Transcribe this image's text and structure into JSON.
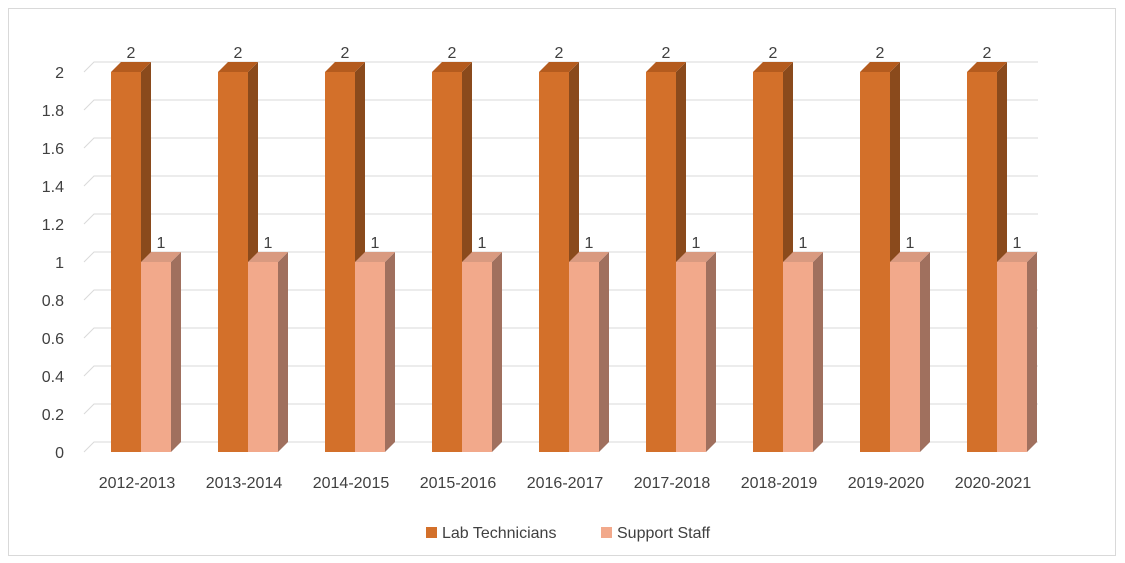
{
  "chart_data": {
    "type": "bar",
    "categories": [
      "2012-2013",
      "2013-2014",
      "2014-2015",
      "2015-2016",
      "2016-2017",
      "2017-2018",
      "2018-2019",
      "2019-2020",
      "2020-2021"
    ],
    "series": [
      {
        "name": "Lab Technicians",
        "values": [
          2,
          2,
          2,
          2,
          2,
          2,
          2,
          2,
          2
        ],
        "color": "#d3702a",
        "side_color": "#8a4a1c",
        "top_color": "#b45b1e"
      },
      {
        "name": "Support Staff",
        "values": [
          1,
          1,
          1,
          1,
          1,
          1,
          1,
          1,
          1
        ],
        "color": "#f2a98b",
        "side_color": "#a0705e",
        "top_color": "#d99a80"
      }
    ],
    "y_ticks": [
      "0",
      "0.2",
      "0.4",
      "0.6",
      "0.8",
      "1",
      "1.2",
      "1.4",
      "1.6",
      "1.8",
      "2"
    ],
    "ylim": [
      0,
      2
    ],
    "grid": true,
    "legend_position": "bottom",
    "data_labels": true
  }
}
